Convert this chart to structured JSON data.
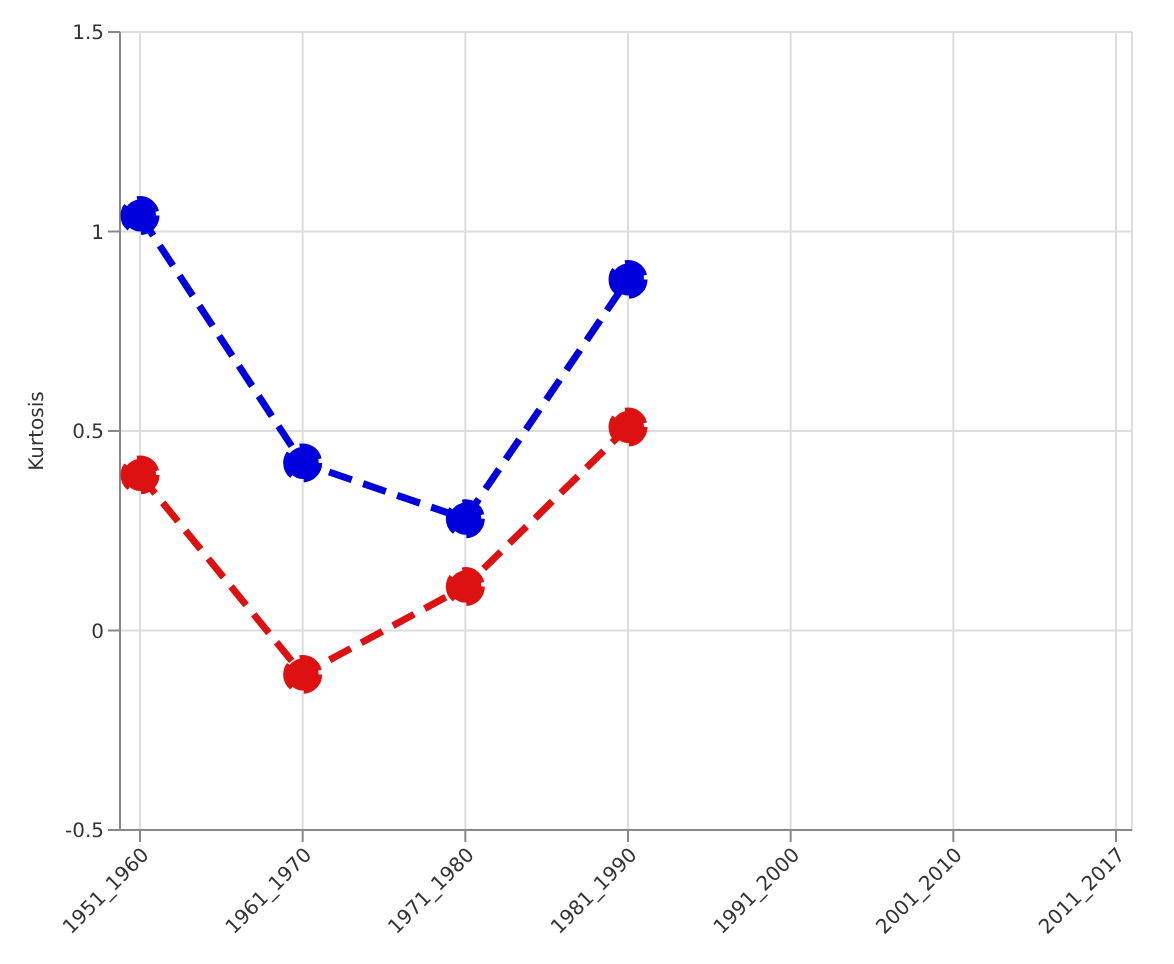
{
  "chart_data": {
    "type": "line",
    "ylabel": "Kurtosis",
    "categories": [
      "1951_1960",
      "1961_1970",
      "1971_1980",
      "1981_1990",
      "1991_2000",
      "2001_2010",
      "2011_2017"
    ],
    "series": [
      {
        "color": "#0000dd",
        "values": [
          1.04,
          0.42,
          0.28,
          0.88,
          null,
          null,
          null
        ]
      },
      {
        "color": "#dd1111",
        "values": [
          0.39,
          -0.11,
          0.11,
          0.51,
          null,
          null,
          null
        ]
      }
    ],
    "ylim": [
      -0.5,
      1.5
    ],
    "yticks": [
      -0.5,
      0,
      0.5,
      1,
      1.5
    ],
    "grid": true,
    "marker": "circle",
    "line_style": "dashed"
  }
}
